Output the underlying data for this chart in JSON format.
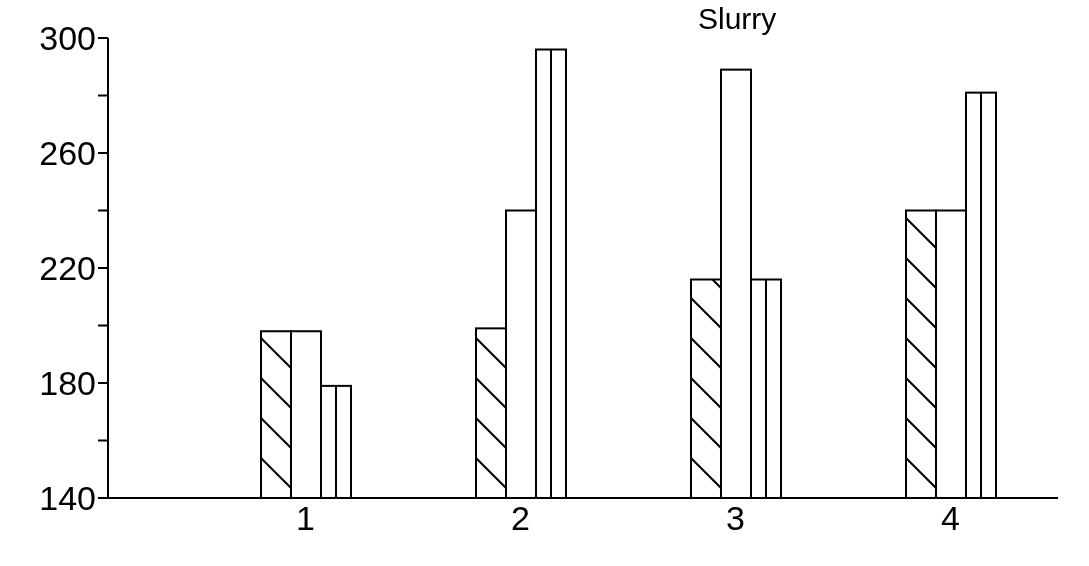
{
  "chart_data": {
    "type": "bar",
    "title": "Slurry",
    "categories": [
      "1",
      "2",
      "3",
      "4"
    ],
    "series": [
      {
        "color": "#000000",
        "values": [
          198,
          199,
          216,
          240
        ]
      },
      {
        "color": "#000000",
        "values": [
          198,
          240,
          289,
          240
        ]
      },
      {
        "color": "#000000",
        "values": [
          179,
          296,
          216,
          281
        ]
      }
    ],
    "ylim": [
      140,
      300
    ],
    "yticks": [
      140,
      {
        "value": 160,
        "label": null
      },
      180,
      {
        "value": 200,
        "label": null
      },
      220,
      {
        "value": 240,
        "label": null
      },
      260,
      {
        "value": 280,
        "label": null
      },
      300
    ],
    "grid": false
  }
}
